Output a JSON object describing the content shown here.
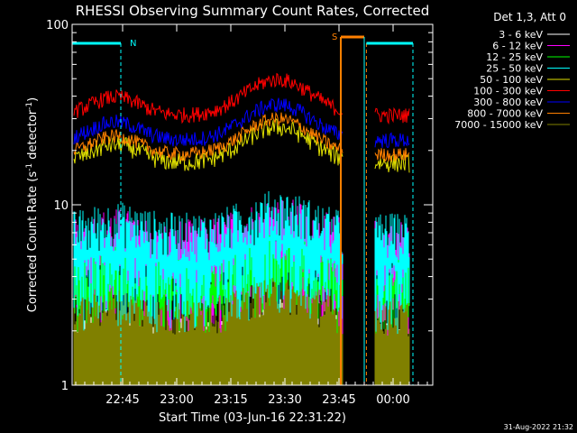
{
  "chart_data": {
    "type": "line",
    "title": "RHESSI Observing Summary Count Rates, Corrected",
    "xlabel": "Start Time (03-Jun-16 22:31:22)",
    "ylabel_main": "Corrected Count Rate (s",
    "ylabel_sup1": "-1",
    "ylabel_mid": " detector",
    "ylabel_sup2": "-1",
    "ylabel_end": ")",
    "y_scale": "log",
    "ylim": [
      1,
      100
    ],
    "xlim_minutes": [
      0,
      100
    ],
    "x_ticks": [
      {
        "t": 14,
        "label": "22:45"
      },
      {
        "t": 29,
        "label": "23:00"
      },
      {
        "t": 44,
        "label": "23:15"
      },
      {
        "t": 59,
        "label": "23:30"
      },
      {
        "t": 74,
        "label": "23:45"
      },
      {
        "t": 89,
        "label": "00:00"
      }
    ],
    "y_tick_labels": [
      {
        "v": 1,
        "label": "1"
      },
      {
        "v": 10,
        "label": "10"
      },
      {
        "v": 100,
        "label": "100"
      }
    ],
    "legend_title": "Det 1,3, Att 0",
    "legend_placement": "top-right outside",
    "series": [
      {
        "name": "3 - 6 keV",
        "color": "#ffffff",
        "style": "bars",
        "base": 1.5,
        "jitter": 0.6
      },
      {
        "name": "6 - 12 keV",
        "color": "#ff00ff",
        "style": "band",
        "base": 4.5,
        "jitter": 0.9
      },
      {
        "name": "12 - 25 keV",
        "color": "#00ff00",
        "style": "band",
        "base": 3.3,
        "jitter": 0.6
      },
      {
        "name": "25 - 50 keV",
        "color": "#00ffff",
        "style": "band",
        "base": 4.9,
        "jitter": 0.9
      },
      {
        "name": "50 - 100 keV",
        "color": "#e0e000",
        "style": "line",
        "base": 18,
        "jitter": 0.12
      },
      {
        "name": "100 - 300 keV",
        "color": "#ff0000",
        "style": "line",
        "base": 33,
        "jitter": 0.1
      },
      {
        "name": "300 - 800 keV",
        "color": "#0000ff",
        "style": "line",
        "base": 24,
        "jitter": 0.1
      },
      {
        "name": "800 - 7000 keV",
        "color": "#ff8000",
        "style": "line",
        "base": 20,
        "jitter": 0.09
      },
      {
        "name": "7000 - 15000 keV",
        "color": "#808000",
        "style": "bars",
        "base": 1.9,
        "jitter": 0.6
      }
    ],
    "data_gaps_minutes": [
      [
        75,
        84
      ]
    ],
    "annotations": [
      {
        "label": "N",
        "color": "#00ffff",
        "text_t": 16
      },
      {
        "label": "S",
        "color": "#ff8000",
        "text_t": 72
      }
    ],
    "timestamp": "31-Aug-2022 21:32"
  }
}
